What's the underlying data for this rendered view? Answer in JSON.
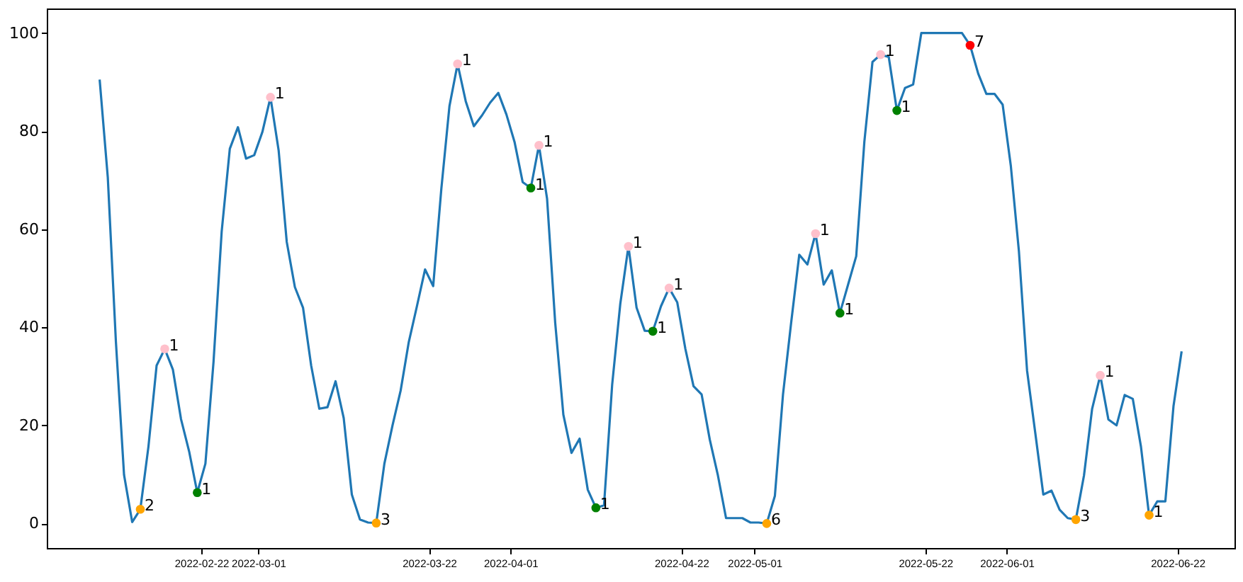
{
  "chart_data": {
    "type": "line",
    "xlim": [
      "2022-02-03",
      "2022-06-29"
    ],
    "ylim": [
      -5,
      105
    ],
    "xticks": [
      "2022-02-22",
      "2022-03-01",
      "2022-03-22",
      "2022-04-01",
      "2022-04-22",
      "2022-05-01",
      "2022-05-22",
      "2022-06-01",
      "2022-06-22"
    ],
    "yticks": [
      0,
      20,
      40,
      60,
      80,
      100
    ],
    "grid": false,
    "line_style": "solid",
    "series": [
      {
        "color": "#1f77b4",
        "marker": "none",
        "x": [
          "2022-02-09T12:00",
          "2022-02-10T12:00",
          "2022-02-11T12:00",
          "2022-02-12T12:00",
          "2022-02-13T12:00",
          "2022-02-14T12:00",
          "2022-02-15T12:00",
          "2022-02-16T12:00",
          "2022-02-17T12:00",
          "2022-02-18T12:00",
          "2022-02-19T12:00",
          "2022-02-20T12:00",
          "2022-02-21T12:00",
          "2022-02-22T12:00",
          "2022-02-23T12:00",
          "2022-02-24T12:00",
          "2022-02-25T12:00",
          "2022-02-26T12:00",
          "2022-02-27T12:00",
          "2022-02-28T12:00",
          "2022-03-01T12:00",
          "2022-03-02T12:00",
          "2022-03-03T12:00",
          "2022-03-04T12:00",
          "2022-03-05T12:00",
          "2022-03-06T12:00",
          "2022-03-07T12:00",
          "2022-03-08T12:00",
          "2022-03-09T12:00",
          "2022-03-10T12:00",
          "2022-03-11T12:00",
          "2022-03-12T12:00",
          "2022-03-13T12:00",
          "2022-03-14T12:00",
          "2022-03-15T12:00",
          "2022-03-16T12:00",
          "2022-03-17T12:00",
          "2022-03-18T12:00",
          "2022-03-19T12:00",
          "2022-03-20T12:00",
          "2022-03-21T12:00",
          "2022-03-22T12:00",
          "2022-03-23T12:00",
          "2022-03-24T12:00",
          "2022-03-25T12:00",
          "2022-03-26T12:00",
          "2022-03-27T12:00",
          "2022-03-28T12:00",
          "2022-03-29T12:00",
          "2022-03-30T12:00",
          "2022-03-31T12:00",
          "2022-04-01T12:00",
          "2022-04-02T12:00",
          "2022-04-03T12:00",
          "2022-04-04T12:00",
          "2022-04-05T12:00",
          "2022-04-06T12:00",
          "2022-04-07T12:00",
          "2022-04-08T12:00",
          "2022-04-09T12:00",
          "2022-04-10T12:00",
          "2022-04-11T12:00",
          "2022-04-12T12:00",
          "2022-04-13T12:00",
          "2022-04-14T12:00",
          "2022-04-15T12:00",
          "2022-04-16T12:00",
          "2022-04-17T12:00",
          "2022-04-18T12:00",
          "2022-04-19T12:00",
          "2022-04-20T12:00",
          "2022-04-21T12:00",
          "2022-04-22T12:00",
          "2022-04-23T12:00",
          "2022-04-24T12:00",
          "2022-04-25T12:00",
          "2022-04-26T12:00",
          "2022-04-27T12:00",
          "2022-04-28T12:00",
          "2022-04-29T12:00",
          "2022-04-30T12:00",
          "2022-05-01T12:00",
          "2022-05-02T12:00",
          "2022-05-03T12:00",
          "2022-05-04T12:00",
          "2022-05-05T12:00",
          "2022-05-06T12:00",
          "2022-05-07T12:00",
          "2022-05-08T12:00",
          "2022-05-09T12:00",
          "2022-05-10T12:00",
          "2022-05-11T12:00",
          "2022-05-12T12:00",
          "2022-05-13T12:00",
          "2022-05-14T12:00",
          "2022-05-15T12:00",
          "2022-05-16T12:00",
          "2022-05-17T12:00",
          "2022-05-18T12:00",
          "2022-05-19T12:00",
          "2022-05-20T12:00",
          "2022-05-21T12:00",
          "2022-05-22T12:00",
          "2022-05-23T12:00",
          "2022-05-24T12:00",
          "2022-05-25T12:00",
          "2022-05-26T12:00",
          "2022-05-27T12:00",
          "2022-05-28T12:00",
          "2022-05-29T12:00",
          "2022-05-30T12:00",
          "2022-05-31T12:00",
          "2022-06-01T12:00",
          "2022-06-02T12:00",
          "2022-06-03T12:00",
          "2022-06-04T12:00",
          "2022-06-05T12:00",
          "2022-06-06T12:00",
          "2022-06-07T12:00",
          "2022-06-08T12:00",
          "2022-06-09T12:00",
          "2022-06-10T12:00",
          "2022-06-11T12:00",
          "2022-06-12T12:00",
          "2022-06-13T12:00",
          "2022-06-14T12:00",
          "2022-06-15T12:00",
          "2022-06-16T12:00",
          "2022-06-17T12:00",
          "2022-06-18T12:00",
          "2022-06-19T12:00",
          "2022-06-20T12:00",
          "2022-06-21T12:00",
          "2022-06-22T12:00"
        ],
        "values": [
          90.5,
          70.6,
          37,
          9.9,
          0.3,
          2.9,
          15.7,
          32.2,
          35.6,
          31.4,
          21.3,
          14.7,
          6.3,
          12.2,
          33,
          59.5,
          76.4,
          80.8,
          74.4,
          75.1,
          79.8,
          86.9,
          76.1,
          57.4,
          48.2,
          44,
          32.2,
          23.4,
          23.7,
          29,
          21.5,
          5.9,
          0.8,
          0.2,
          0.1,
          12.2,
          20,
          27.1,
          37,
          44.3,
          51.8,
          48.4,
          68.2,
          85.1,
          93.7,
          86.1,
          81,
          83.2,
          85.8,
          87.8,
          83.4,
          77.8,
          69.6,
          68.4,
          77.1,
          66.2,
          40.9,
          22.2,
          14.4,
          17.3,
          6.9,
          3.2,
          3.7,
          28.3,
          44.8,
          56.5,
          44,
          39.3,
          39.2,
          44.3,
          48,
          45.1,
          35.6,
          28,
          26.3,
          17.1,
          9.8,
          1.1,
          1.1,
          1.1,
          0.2,
          0.2,
          0,
          5.6,
          26.3,
          40.9,
          54.8,
          52.8,
          59.1,
          48.7,
          51.6,
          42.9,
          48.7,
          54.5,
          77.8,
          94.1,
          95.6,
          95.1,
          84.2,
          88.8,
          89.5,
          100,
          100,
          100,
          100,
          100,
          100,
          97.5,
          91.7,
          87.6,
          87.6,
          85.4,
          73,
          55.5,
          31.2,
          18.6,
          5.9,
          6.7,
          2.8,
          1.1,
          0.8,
          9.8,
          23.4,
          30.2,
          21.2,
          20,
          26.2,
          25.4,
          15.7,
          1.7,
          4.5,
          4.5,
          23.9,
          35.1
        ]
      },
      {
        "type": "scatter",
        "marker": "circle",
        "color": "#ffa500",
        "x": [
          "2022-02-14T12:00",
          "2022-03-15T12:00",
          "2022-05-02T12:00",
          "2022-06-09T12:00",
          "2022-06-18T12:00"
        ],
        "values": [
          2.9,
          0.1,
          0,
          0.8,
          1.7
        ]
      },
      {
        "type": "scatter",
        "marker": "circle",
        "color": "#008000",
        "x": [
          "2022-02-21T12:00",
          "2022-04-03T12:00",
          "2022-04-11T12:00",
          "2022-04-18T12:00",
          "2022-05-11T12:00",
          "2022-05-18T12:00"
        ],
        "values": [
          6.3,
          68.4,
          3.2,
          39.2,
          42.9,
          84.2
        ]
      },
      {
        "type": "scatter",
        "marker": "circle",
        "color": "#ffc0cb",
        "x": [
          "2022-02-17T12:00",
          "2022-03-02T12:00",
          "2022-03-25T12:00",
          "2022-04-04T12:00",
          "2022-04-15T12:00",
          "2022-04-20T12:00",
          "2022-05-08T12:00",
          "2022-05-16T12:00",
          "2022-06-12T12:00"
        ],
        "values": [
          35.6,
          86.9,
          93.7,
          77.1,
          56.5,
          48,
          59.1,
          95.6,
          30.2
        ]
      },
      {
        "type": "scatter",
        "marker": "circle",
        "color": "#ff0000",
        "x": [
          "2022-05-27T12:00"
        ],
        "values": [
          97.5
        ]
      }
    ],
    "annotations": [
      {
        "text": "2",
        "x": "2022-02-14T12:00",
        "y": 2.9
      },
      {
        "text": "3",
        "x": "2022-03-15T12:00",
        "y": 0.1
      },
      {
        "text": "6",
        "x": "2022-05-02T12:00",
        "y": 0
      },
      {
        "text": "3",
        "x": "2022-06-09T12:00",
        "y": 0.8
      },
      {
        "text": "1",
        "x": "2022-06-18T12:00",
        "y": 1.7
      },
      {
        "text": "1",
        "x": "2022-02-21T12:00",
        "y": 6.3
      },
      {
        "text": "1",
        "x": "2022-04-03T12:00",
        "y": 68.4
      },
      {
        "text": "1",
        "x": "2022-04-11T12:00",
        "y": 3.2
      },
      {
        "text": "1",
        "x": "2022-04-18T12:00",
        "y": 39.2
      },
      {
        "text": "1",
        "x": "2022-05-11T12:00",
        "y": 42.9
      },
      {
        "text": "1",
        "x": "2022-05-18T12:00",
        "y": 84.2
      },
      {
        "text": "1",
        "x": "2022-02-17T12:00",
        "y": 35.6
      },
      {
        "text": "1",
        "x": "2022-03-02T12:00",
        "y": 86.9
      },
      {
        "text": "1",
        "x": "2022-03-25T12:00",
        "y": 93.7
      },
      {
        "text": "1",
        "x": "2022-04-04T12:00",
        "y": 77.1
      },
      {
        "text": "1",
        "x": "2022-04-15T12:00",
        "y": 56.5
      },
      {
        "text": "1",
        "x": "2022-04-20T12:00",
        "y": 48
      },
      {
        "text": "1",
        "x": "2022-05-08T12:00",
        "y": 59.1
      },
      {
        "text": "1",
        "x": "2022-05-16T12:00",
        "y": 95.6
      },
      {
        "text": "1",
        "x": "2022-06-12T12:00",
        "y": 30.2
      },
      {
        "text": "7",
        "x": "2022-05-27T12:00",
        "y": 97.5
      }
    ]
  }
}
